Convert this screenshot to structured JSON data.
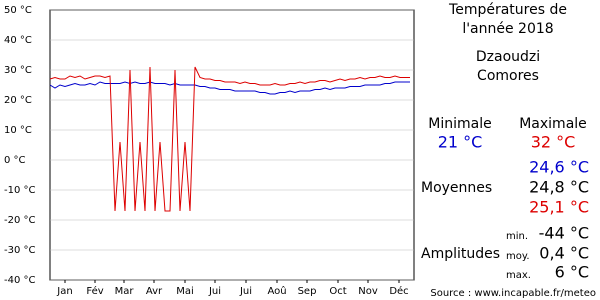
{
  "chart_data": {
    "type": "line",
    "x": [
      1,
      6,
      11,
      16,
      21,
      26,
      31,
      36,
      41,
      46,
      51,
      56,
      61,
      66,
      71,
      76,
      81,
      86,
      91,
      96,
      101,
      106,
      111,
      116,
      121,
      126,
      131,
      136,
      141,
      146,
      151,
      156,
      161,
      166,
      171,
      176,
      181,
      186,
      191,
      196,
      201,
      206,
      211,
      216,
      221,
      226,
      231,
      236,
      241,
      246,
      251,
      256,
      261,
      266,
      271,
      276,
      281,
      286,
      291,
      296,
      301,
      306,
      311,
      316,
      321,
      326,
      331,
      336,
      341,
      346,
      351,
      356,
      361
    ],
    "series": [
      {
        "color": "#0000cc",
        "values": [
          25,
          24,
          25,
          24.5,
          25,
          25.5,
          25,
          25,
          25.5,
          25,
          26,
          25.5,
          25.5,
          25.5,
          25.5,
          26,
          25.5,
          26,
          25.5,
          25.5,
          26,
          25.5,
          25.5,
          25.5,
          25,
          25.5,
          25,
          25,
          25,
          25,
          24.5,
          24.5,
          24,
          24,
          23.5,
          23.5,
          23.5,
          23,
          23,
          23,
          23,
          23,
          22.5,
          22.5,
          22,
          22,
          22.5,
          22.5,
          23,
          22.5,
          23,
          23,
          23,
          23.5,
          23.5,
          24,
          23.5,
          24,
          24,
          24,
          24.5,
          24.5,
          24.5,
          25,
          25,
          25,
          25,
          25.5,
          25.5,
          26,
          26,
          26,
          26
        ]
      },
      {
        "color": "#dd0000",
        "values": [
          27,
          27.5,
          27,
          27,
          28,
          27.5,
          28,
          27,
          27.5,
          28,
          28,
          27.5,
          28,
          -17,
          6,
          -17,
          30,
          -17,
          6,
          -17,
          31,
          -17,
          6,
          -17,
          -17,
          30,
          -17,
          6,
          -17,
          31,
          27.5,
          27,
          27,
          26.5,
          26.5,
          26,
          26,
          26,
          25.5,
          26,
          25.5,
          25.5,
          25,
          25,
          25,
          25.5,
          25,
          25,
          25.5,
          25.5,
          26,
          25.5,
          26,
          26,
          26.5,
          26.5,
          26,
          26.5,
          27,
          26.5,
          27,
          27,
          27.5,
          27,
          27.5,
          27.5,
          28,
          27.5,
          27.5,
          28,
          27.5,
          27.5,
          27.5
        ]
      }
    ],
    "xlim": [
      1,
      365
    ],
    "xticks": [
      {
        "value": 16,
        "label": "Jan"
      },
      {
        "value": 46,
        "label": "Fév"
      },
      {
        "value": 75,
        "label": "Mar"
      },
      {
        "value": 105,
        "label": "Avr"
      },
      {
        "value": 136,
        "label": "Mai"
      },
      {
        "value": 166,
        "label": "Jui"
      },
      {
        "value": 197,
        "label": "Jui"
      },
      {
        "value": 228,
        "label": "Aoû"
      },
      {
        "value": 258,
        "label": "Sep"
      },
      {
        "value": 289,
        "label": "Oct"
      },
      {
        "value": 319,
        "label": "Nov"
      },
      {
        "value": 350,
        "label": "Déc"
      }
    ],
    "ylim": [
      -40,
      50
    ],
    "yticks": [
      {
        "value": 50,
        "label": "50 °C"
      },
      {
        "value": 40,
        "label": "40 °C"
      },
      {
        "value": 30,
        "label": "30 °C"
      },
      {
        "value": 20,
        "label": "20 °C"
      },
      {
        "value": 10,
        "label": "10 °C"
      },
      {
        "value": 0,
        "label": "0 °C"
      },
      {
        "value": -10,
        "label": "-10 °C"
      },
      {
        "value": -20,
        "label": "-20 °C"
      },
      {
        "value": -30,
        "label": "-30 °C"
      },
      {
        "value": -40,
        "label": "-40 °C"
      }
    ],
    "grid": true
  },
  "panel": {
    "title1": "Températures de",
    "title2": "l'année 2018",
    "city": "Dzaoudzi",
    "country": "Comores",
    "min_label": "Minimale",
    "max_label": "Maximale",
    "min_value": "21 °C",
    "max_value": "32 °C",
    "avg_label": "Moyennes",
    "avg_min": "24,6 °C",
    "avg": "24,8 °C",
    "avg_max": "25,1 °C",
    "amp_label": "Amplitudes",
    "amp_min_label": "min.",
    "amp_min": "-44 °C",
    "amp_avg_label": "moy.",
    "amp_avg": "0,4 °C",
    "amp_max_label": "max.",
    "amp_max": "6 °C",
    "source": "Source : www.incapable.fr/meteo"
  }
}
